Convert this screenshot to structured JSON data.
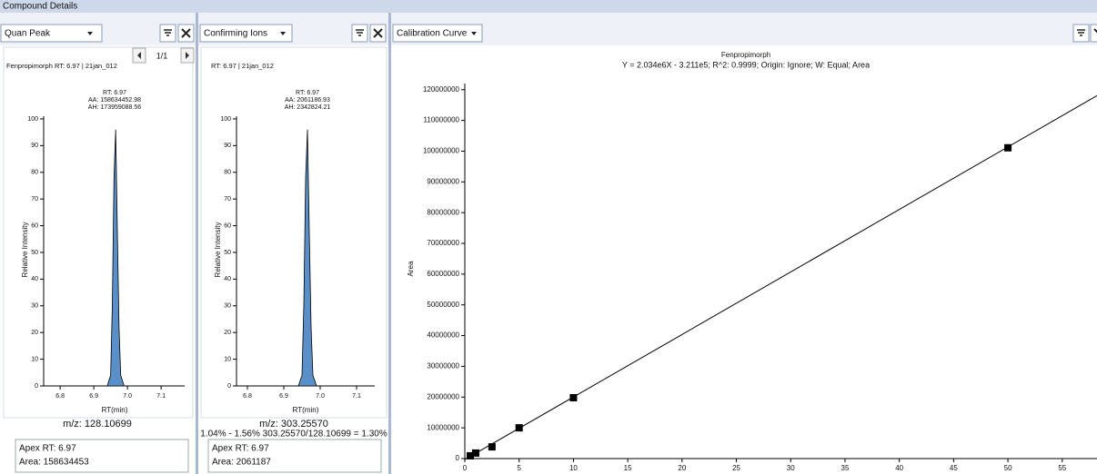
{
  "window_title": "Compound Details",
  "quan_panel": {
    "dropdown": "Quan Peak",
    "pager": "1/1",
    "header": "Fenpropimorph  RT: 6.97 | 21jan_012",
    "peak_labels": [
      "RT: 6.97",
      "AA: 158634452.98",
      "AH: 173959088.56"
    ],
    "chart": {
      "type": "area",
      "color": "#5b8fc7",
      "x_label": "RT(min)",
      "y_label": "Relative Intensity",
      "x": [
        6.75,
        6.8,
        6.9,
        6.94,
        6.95,
        6.955,
        6.96,
        6.965,
        6.97,
        6.975,
        6.98,
        6.99,
        7.1,
        7.17
      ],
      "values": [
        0,
        0,
        0,
        0,
        4,
        30,
        78,
        96,
        58,
        22,
        4,
        0,
        0,
        0
      ],
      "xlim": [
        6.751,
        7.17
      ],
      "ylim": [
        0,
        101
      ],
      "xticks": [
        6.8,
        6.9,
        {
          "value": 7,
          "label": "7.0"
        },
        7.1
      ],
      "yticks": [
        0,
        10,
        20,
        30,
        40,
        50,
        60,
        70,
        80,
        90,
        100
      ]
    },
    "mz": "m/z: 128.10699",
    "info": [
      "Apex RT: 6.97",
      "Area: 158634453"
    ]
  },
  "confirm_panel": {
    "dropdown": "Confirming Ions",
    "header": "RT: 6.97 | 21jan_012",
    "peak_labels": [
      "RT: 6.97",
      "AA: 2061186.93",
      "AH: 2342824.21"
    ],
    "chart": {
      "type": "area",
      "color": "#5b8fc7",
      "x_label": "RT(min)",
      "y_label": "Relative Intensity",
      "x": [
        6.77,
        6.8,
        6.9,
        6.94,
        6.95,
        6.955,
        6.96,
        6.965,
        6.97,
        6.975,
        6.98,
        6.99,
        7.1,
        7.15
      ],
      "values": [
        0,
        0,
        0,
        0,
        4,
        30,
        78,
        96,
        58,
        22,
        4,
        0,
        0,
        0
      ],
      "xlim": [
        6.77,
        7.15
      ],
      "ylim": [
        0,
        101
      ],
      "xticks": [
        6.8,
        6.9,
        {
          "value": 7,
          "label": "7.0"
        },
        7.1
      ],
      "yticks": [
        0,
        10,
        20,
        30,
        40,
        50,
        60,
        70,
        80,
        90,
        100
      ]
    },
    "mz": "m/z: 303.25570",
    "ratio": "1.04% - 1.56% 303.25570/128.10699 = 1.30%",
    "info": [
      "Apex RT: 6.97",
      "Area: 2061187"
    ]
  },
  "calibration_panel": {
    "dropdown": "Calibration Curve",
    "chart": {
      "type": "scatter",
      "title": "Fenpropimorph",
      "subtitle": "Y = 2.034e6X - 3.211e5; R^2: 0.9999; Origin: Ignore; W: Equal; Area",
      "y_label": "Area",
      "color": "#000000",
      "x": [
        0.5,
        1,
        2.5,
        5,
        10,
        50
      ],
      "values": [
        900000,
        1800000,
        3800000,
        10000000,
        19800000,
        101100000
      ],
      "fit": {
        "x": [
          0,
          58.2
        ],
        "values": [
          -321100,
          118057700
        ]
      },
      "xlim": [
        0,
        58.2
      ],
      "ylim": [
        0,
        122000000
      ],
      "xticks": [
        0,
        5,
        10,
        15,
        20,
        25,
        30,
        35,
        40,
        45,
        50,
        55
      ],
      "yticks": [
        0,
        10000000,
        20000000,
        30000000,
        40000000,
        50000000,
        60000000,
        70000000,
        80000000,
        90000000,
        100000000,
        110000000,
        120000000
      ]
    }
  }
}
